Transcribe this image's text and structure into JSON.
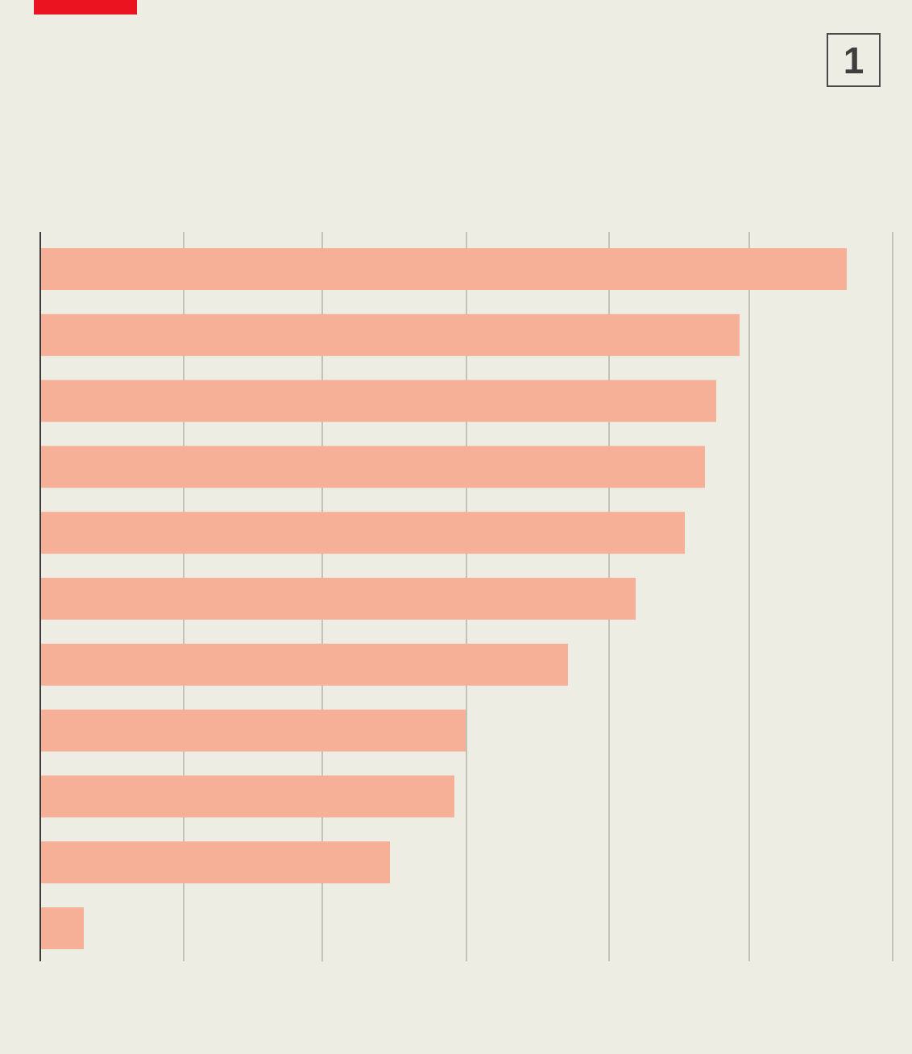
{
  "header": {
    "badge_number": "1",
    "accent_color": "#ea131f"
  },
  "chart_data": {
    "type": "bar",
    "orientation": "horizontal",
    "categories": [
      "",
      "",
      "",
      "",
      "",
      "",
      "",
      "",
      "",
      "",
      ""
    ],
    "values": [
      1001,
      868,
      839,
      825,
      800,
      739,
      655,
      528,
      514,
      434,
      54
    ],
    "xlim": [
      0,
      1058
    ],
    "gridlines": [
      0,
      178,
      350,
      529,
      706,
      880,
      1058
    ],
    "grid": true,
    "bar_color": "#f6b097",
    "grid_color": "#c3c2b8",
    "axis_color": "#3b3b3b",
    "title": "",
    "xlabel": "",
    "ylabel": ""
  }
}
